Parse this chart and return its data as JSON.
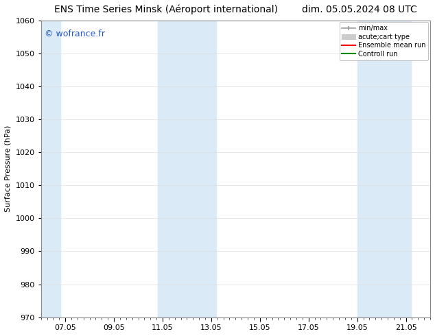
{
  "title": "ENS Time Series Minsk (Aéroport international)        dim. 05.05.2024 08 UTC",
  "ylabel": "Surface Pressure (hPa)",
  "watermark": "© wofrance.fr",
  "watermark_color": "#2255cc",
  "ylim": [
    970,
    1060
  ],
  "yticks": [
    970,
    980,
    990,
    1000,
    1010,
    1020,
    1030,
    1040,
    1050,
    1060
  ],
  "xtick_labels": [
    "07.05",
    "09.05",
    "11.05",
    "13.05",
    "15.05",
    "17.05",
    "19.05",
    "21.05"
  ],
  "xtick_positions": [
    1,
    3,
    5,
    7,
    9,
    11,
    13,
    15
  ],
  "xlim": [
    0,
    16
  ],
  "background_color": "#ffffff",
  "plot_bg_color": "#ffffff",
  "shaded_bands": [
    {
      "x_start": 0.0,
      "x_end": 0.8,
      "color": "#daeaf7"
    },
    {
      "x_start": 4.8,
      "x_end": 7.2,
      "color": "#daeaf7"
    },
    {
      "x_start": 13.0,
      "x_end": 15.2,
      "color": "#daeaf7"
    }
  ],
  "legend_entries": [
    {
      "label": "min/max",
      "color": "#aaaaaa",
      "lw": 1.2
    },
    {
      "label": "acute;cart type",
      "color": "#cccccc",
      "lw": 6
    },
    {
      "label": "Ensemble mean run",
      "color": "#ff0000",
      "lw": 1.5
    },
    {
      "label": "Controll run",
      "color": "#008800",
      "lw": 1.5
    }
  ],
  "grid_color": "#dddddd",
  "tick_color": "#000000",
  "title_fontsize": 10,
  "watermark_fontsize": 9,
  "axis_label_fontsize": 8,
  "legend_fontsize": 7
}
